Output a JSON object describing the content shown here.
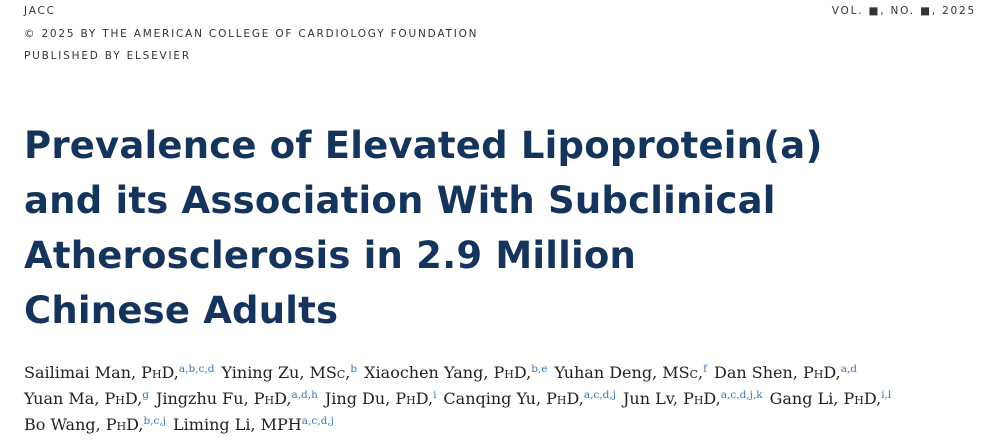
{
  "header": {
    "journal": "JACC",
    "copyright": "© 2025 BY THE AMERICAN COLLEGE OF CARDIOLOGY FOUNDATION",
    "publisher": "PUBLISHED BY ELSEVIER",
    "issue": "VOL. ■, NO. ■, 2025"
  },
  "title_lines": [
    "Prevalence of Elevated Lipoprotein(a)",
    "and its Association With Subclinical",
    "Atherosclerosis in 2.9 Million",
    "Chinese Adults"
  ],
  "author_lines": [
    [
      {
        "name": "Sailimai Man,",
        "degree": "PhD,",
        "affiliations": "a,b,c,d"
      },
      {
        "name": "Yining Zu,",
        "degree": "MSc,",
        "affiliations": "b"
      },
      {
        "name": "Xiaochen Yang,",
        "degree": "PhD,",
        "affiliations": "b,e"
      },
      {
        "name": "Yuhan Deng,",
        "degree": "MSc,",
        "affiliations": "f"
      },
      {
        "name": "Dan Shen,",
        "degree": "PhD,",
        "affiliations": "a,d"
      }
    ],
    [
      {
        "name": "Yuan Ma,",
        "degree": "PhD,",
        "affiliations": "g"
      },
      {
        "name": "Jingzhu Fu,",
        "degree": "PhD,",
        "affiliations": "a,d,h"
      },
      {
        "name": "Jing Du,",
        "degree": "PhD,",
        "affiliations": "i"
      },
      {
        "name": "Canqing Yu,",
        "degree": "PhD,",
        "affiliations": "a,c,d,j"
      },
      {
        "name": "Jun Lv,",
        "degree": "PhD,",
        "affiliations": "a,c,d,j,k"
      },
      {
        "name": "Gang Li,",
        "degree": "PhD,",
        "affiliations": "i,l"
      }
    ],
    [
      {
        "name": "Bo Wang,",
        "degree": "PhD,",
        "affiliations": "b,c,j"
      },
      {
        "name": "Liming Li,",
        "degree": "MPH",
        "affiliations": "a,c,d,j"
      }
    ]
  ]
}
